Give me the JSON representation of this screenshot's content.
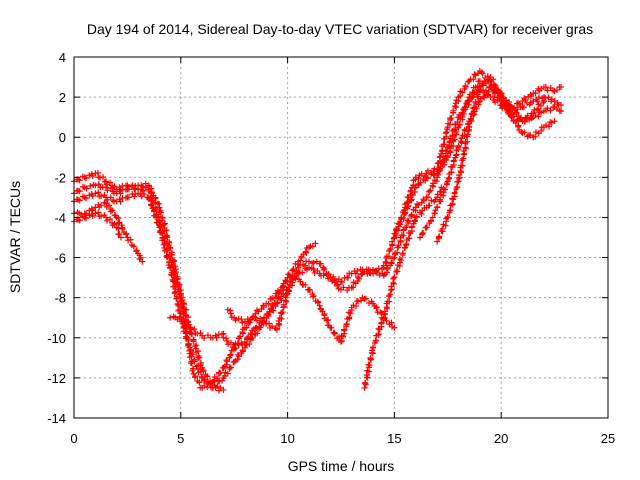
{
  "chart_data": {
    "type": "scatter",
    "title": "Day 194 of 2014, Sidereal Day-to-day VTEC variation (SDTVAR) for receiver gras",
    "xlabel": "GPS time / hours",
    "ylabel": "SDTVAR / TECUs",
    "xlim": [
      0,
      25
    ],
    "ylim": [
      -14,
      4
    ],
    "xticks": [
      "0",
      "5",
      "10",
      "15",
      "20",
      "25"
    ],
    "yticks": [
      "-14",
      "-12",
      "-10",
      "-8",
      "-6",
      "-4",
      "-2",
      "0",
      "2",
      "4"
    ],
    "grid": true,
    "marker": "+",
    "color": "#ff0000",
    "series": [
      {
        "x": [
          0.0,
          0.5,
          1.0,
          1.5,
          2.0,
          2.5,
          3.0,
          3.5,
          4.0,
          4.5,
          5.0,
          5.3,
          5.6,
          6.0,
          6.5,
          7.0,
          7.5,
          8.0,
          8.5,
          9.0,
          9.5,
          10.0,
          10.5,
          11.0,
          11.5,
          12.0,
          12.5,
          13.0,
          13.5,
          14.0,
          14.5,
          15.0,
          15.5,
          16.0,
          16.5,
          17.0,
          17.5,
          18.0,
          18.5,
          19.0,
          19.5,
          20.0,
          20.5,
          21.0,
          21.5,
          22.0,
          22.5,
          22.8
        ],
        "y": [
          -2.2,
          -2.0,
          -1.8,
          -2.2,
          -2.6,
          -2.4,
          -2.6,
          -2.6,
          -4.2,
          -6.0,
          -8.0,
          -10.0,
          -11.8,
          -12.5,
          -12.2,
          -11.5,
          -10.5,
          -9.5,
          -8.8,
          -8.3,
          -7.8,
          -7.2,
          -6.8,
          -6.5,
          -6.8,
          -7.0,
          -7.2,
          -6.8,
          -6.6,
          -6.8,
          -6.5,
          -5.0,
          -3.5,
          -2.0,
          -1.8,
          -1.6,
          0.5,
          2.0,
          2.8,
          3.3,
          2.8,
          2.0,
          1.5,
          1.8,
          2.2,
          2.5,
          2.3,
          2.5
        ]
      },
      {
        "x": [
          0.0,
          0.5,
          1.0,
          1.5,
          2.0,
          2.5,
          3.0,
          3.5,
          4.0,
          4.5,
          5.0,
          5.5,
          6.0,
          6.5,
          7.0,
          7.5,
          8.0,
          8.5,
          9.0,
          9.5,
          10.0,
          10.5,
          11.0,
          11.3
        ],
        "y": [
          -2.8,
          -2.5,
          -2.4,
          -2.5,
          -2.8,
          -2.6,
          -2.4,
          -2.4,
          -3.5,
          -5.5,
          -7.8,
          -9.8,
          -11.5,
          -12.5,
          -12.0,
          -11.2,
          -10.5,
          -9.8,
          -9.0,
          -8.0,
          -7.0,
          -6.2,
          -5.5,
          -5.3
        ]
      },
      {
        "x": [
          0.0,
          0.5,
          1.0,
          1.5,
          2.0,
          2.5,
          3.0,
          3.5,
          4.0,
          4.5,
          5.0,
          5.5,
          6.0,
          6.5,
          7.0
        ],
        "y": [
          -3.2,
          -3.0,
          -2.8,
          -3.0,
          -3.2,
          -3.0,
          -2.8,
          -3.0,
          -4.5,
          -6.5,
          -9.0,
          -10.8,
          -12.0,
          -12.5,
          -12.6
        ]
      },
      {
        "x": [
          0.0,
          0.5,
          1.0,
          1.5,
          2.0,
          2.5,
          3.0,
          3.2
        ],
        "y": [
          -3.8,
          -3.8,
          -3.5,
          -3.3,
          -4.0,
          -5.0,
          -5.8,
          -6.2
        ]
      },
      {
        "x": [
          0.0,
          0.5,
          1.0,
          1.5,
          2.0,
          2.2
        ],
        "y": [
          -4.2,
          -4.0,
          -3.8,
          -4.0,
          -4.5,
          -5.0
        ]
      },
      {
        "x": [
          7.0,
          7.5,
          8.0,
          8.5,
          9.0,
          9.5,
          10.0,
          10.5,
          11.0,
          11.5,
          12.0,
          12.5,
          13.0,
          13.5,
          14.0,
          14.5,
          15.0,
          15.5,
          16.0,
          16.5,
          17.0,
          17.5,
          18.0,
          18.5,
          19.0,
          19.5,
          20.0,
          20.5,
          21.0,
          21.5,
          22.0,
          22.5,
          22.8
        ],
        "y": [
          -10.0,
          -10.5,
          -10.2,
          -9.5,
          -9.0,
          -8.3,
          -7.6,
          -6.5,
          -6.2,
          -6.3,
          -7.0,
          -7.6,
          -7.5,
          -6.8,
          -6.6,
          -6.9,
          -6.0,
          -4.5,
          -3.5,
          -3.0,
          -2.0,
          -0.5,
          1.0,
          1.8,
          2.5,
          2.0,
          1.6,
          1.2,
          1.5,
          1.8,
          2.0,
          1.8,
          1.6
        ]
      },
      {
        "x": [
          4.5,
          5.0,
          5.5,
          6.0,
          6.5,
          7.0
        ],
        "y": [
          -9.0,
          -9.0,
          -9.6,
          -9.9,
          -10.0,
          -9.8
        ]
      },
      {
        "x": [
          7.2,
          7.5,
          8.0,
          8.5,
          9.0,
          9.5,
          10.0,
          10.3,
          10.6,
          11.0,
          11.5,
          12.0,
          12.5,
          13.0,
          13.5,
          14.0,
          14.5,
          15.0
        ],
        "y": [
          -8.6,
          -9.0,
          -9.2,
          -9.0,
          -9.3,
          -9.6,
          -7.8,
          -7.0,
          -7.2,
          -7.6,
          -8.4,
          -9.5,
          -10.2,
          -8.5,
          -8.0,
          -8.3,
          -9.0,
          -9.5
        ]
      },
      {
        "x": [
          13.6,
          14.0,
          14.5,
          15.0,
          15.5,
          16.0,
          16.5,
          17.0,
          17.2
        ],
        "y": [
          -12.5,
          -10.5,
          -9.0,
          -7.0,
          -5.5,
          -4.0,
          -3.5,
          -3.0,
          -2.5
        ]
      },
      {
        "x": [
          15.0,
          15.5,
          16.0,
          16.5,
          17.0,
          17.5,
          18.0,
          18.5,
          19.0,
          19.5,
          20.0,
          20.5,
          21.0,
          21.5,
          22.0,
          22.5,
          22.8
        ],
        "y": [
          -4.8,
          -3.8,
          -2.5,
          -2.0,
          -1.8,
          -1.0,
          0.5,
          2.0,
          2.8,
          2.5,
          1.8,
          1.0,
          0.8,
          1.0,
          1.3,
          1.5,
          1.3
        ]
      },
      {
        "x": [
          16.2,
          16.5,
          16.8,
          17.0,
          17.5,
          18.0,
          18.5,
          19.0,
          19.5,
          20.0,
          20.5,
          21.0,
          21.5,
          22.0,
          22.5
        ],
        "y": [
          -5.0,
          -4.5,
          -4.0,
          -3.5,
          -2.2,
          -0.5,
          0.8,
          1.8,
          2.5,
          2.2,
          1.0,
          0.2,
          0.0,
          0.5,
          0.8
        ]
      },
      {
        "x": [
          17.0,
          17.5,
          18.0,
          18.5,
          19.0,
          19.5,
          20.0,
          20.5,
          21.0,
          21.5,
          22.0
        ],
        "y": [
          -5.2,
          -4.0,
          -2.2,
          0.5,
          2.5,
          3.0,
          2.0,
          1.5,
          0.8,
          1.2,
          1.8
        ]
      }
    ]
  }
}
